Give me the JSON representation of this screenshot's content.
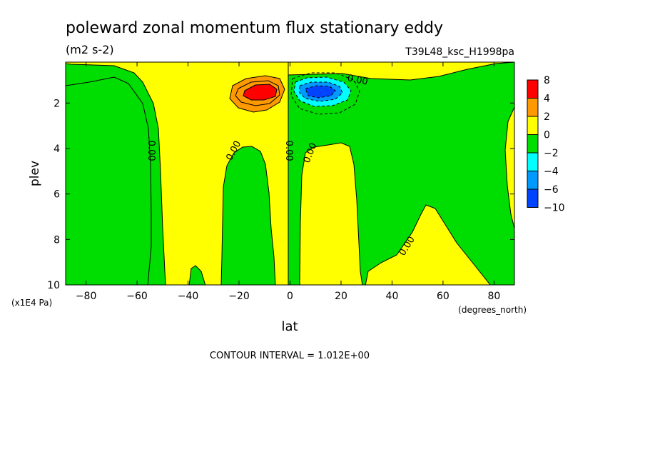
{
  "title": "poleward zonal momentum flux stationary eddy",
  "units": "(m2 s-2)",
  "run_label": "T39L48_ksc_H1998pa",
  "contour_interval_text": "CONTOUR INTERVAL = 1.012E+00",
  "chart_data": {
    "type": "heatmap",
    "xlabel": "lat",
    "x_units": "(degrees_north)",
    "ylabel": "plev",
    "y_units": "(x1E4 Pa)",
    "xlim": [
      -88,
      88
    ],
    "ylim": [
      0.2,
      10
    ],
    "y_inverted": true,
    "x_ticks": [
      -80,
      -60,
      -40,
      -20,
      0,
      20,
      40,
      60,
      80
    ],
    "y_ticks": [
      2,
      4,
      6,
      8,
      10
    ],
    "contour_interval": 1.012,
    "colorbar": {
      "levels": [
        "8",
        "4",
        "2",
        "0",
        "−2",
        "−4",
        "−6",
        "−10"
      ],
      "colors": [
        "#ff0000",
        "#ff9900",
        "#ffff00",
        "#00dd00",
        "#00ffff",
        "#0099ff",
        "#0044ff"
      ]
    },
    "contour_labels": [
      {
        "text": "0.00",
        "lat": -54.5,
        "plev": 4.1,
        "angle": 90
      },
      {
        "text": "0.00",
        "lat": -22,
        "plev": 4.1,
        "angle": -62
      },
      {
        "text": "0.00",
        "lat": -0.5,
        "plev": 4.1,
        "angle": 90
      },
      {
        "text": "0.00",
        "lat": 8,
        "plev": 4.2,
        "angle": -68
      },
      {
        "text": "0.00",
        "lat": 26.5,
        "plev": 1.0,
        "angle": 12
      },
      {
        "text": "0.00",
        "lat": 46,
        "plev": 8.3,
        "angle": -58
      }
    ],
    "extrema": [
      {
        "lat": -10,
        "plev": 1.55,
        "value": 8,
        "sign": "positive"
      },
      {
        "lat": 10,
        "plev": 1.5,
        "value": -10,
        "sign": "negative"
      }
    ]
  }
}
